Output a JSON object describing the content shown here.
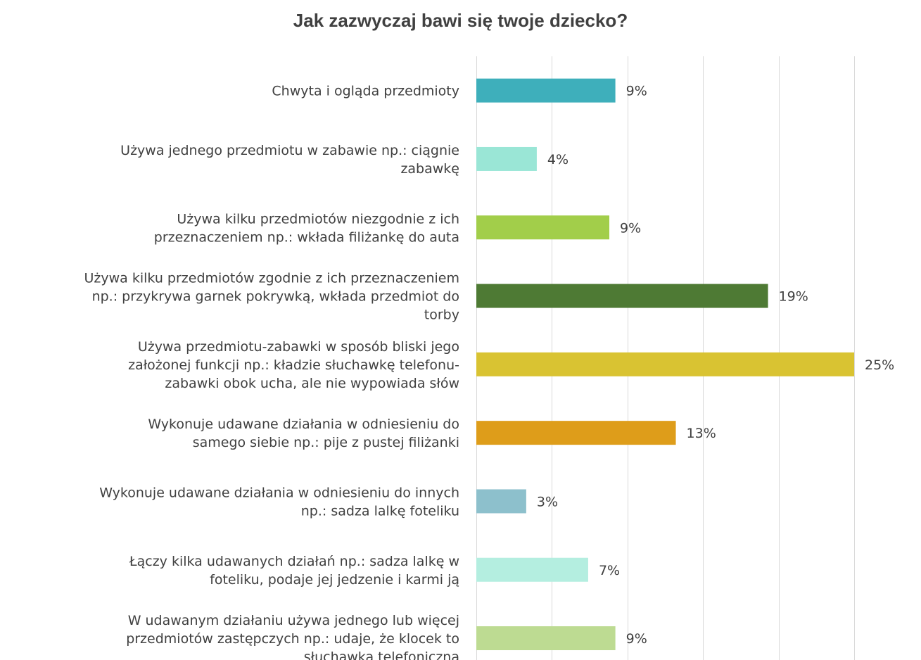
{
  "chart_data": {
    "type": "bar",
    "orientation": "horizontal",
    "title": "Jak zazwyczaj bawi się twoje dziecko?",
    "xlim": [
      0,
      25
    ],
    "grid": true,
    "legend": "none",
    "categories": [
      "Chwyta i ogląda przedmioty",
      "Używa jednego przedmiotu w zabawie np.: ciągnie zabawkę",
      "Używa kilku przedmiotów niezgodnie z ich przeznaczeniem np.: wkłada filiżankę do auta",
      "Używa kilku przedmiotów zgodnie z ich przeznaczeniem np.: przykrywa garnek pokrywką, wkłada przedmiot do torby",
      "Używa przedmiotu-zabawki w sposób bliski jego założonej funkcji np.: kładzie słuchawkę telefonu-zabawki obok ucha, ale nie wypowiada słów",
      "Wykonuje udawane działania w odniesieniu do samego siebie np.: pije z pustej filiżanki",
      "Wykonuje udawane działania w odniesieniu do innych np.: sadza lalkę foteliku",
      "Łączy kilka udawanych działań np.: sadza lalkę w foteliku, podaje jej jedzenie i karmi ją",
      "W udawanym działaniu używa jednego lub więcej przedmiotów zastępczych np.: udaje, że klocek to słuchawka telefoniczna"
    ],
    "category_lines": [
      [
        "Chwyta i ogląda przedmioty"
      ],
      [
        "Używa jednego przedmiotu w zabawie np.: ciągnie",
        "zabawkę"
      ],
      [
        "Używa kilku przedmiotów niezgodnie z ich",
        "przeznaczeniem np.: wkłada filiżankę do auta"
      ],
      [
        "Używa kilku przedmiotów zgodnie z ich przeznaczeniem",
        "np.: przykrywa garnek pokrywką, wkłada przedmiot do",
        "torby"
      ],
      [
        "Używa przedmiotu-zabawki w sposób bliski jego",
        "założonej funkcji np.: kładzie słuchawkę telefonu-",
        "zabawki obok ucha, ale nie wypowiada słów"
      ],
      [
        "Wykonuje udawane działania w odniesieniu do",
        "samego siebie np.: pije z pustej filiżanki"
      ],
      [
        "Wykonuje udawane działania w odniesieniu do innych",
        "np.: sadza lalkę foteliku"
      ],
      [
        "Łączy kilka udawanych działań np.: sadza lalkę w",
        "foteliku, podaje jej jedzenie i karmi ją"
      ],
      [
        "W udawanym działaniu używa jednego lub więcej",
        "przedmiotów zastępczych np.: udaje, że klocek to",
        "słuchawka telefoniczna"
      ]
    ],
    "values": [
      9.2,
      4,
      8.8,
      19.3,
      25,
      13.2,
      3.3,
      7.4,
      9.2
    ],
    "value_labels": [
      "9%",
      "4%",
      "9%",
      "19%",
      "25%",
      "13%",
      "3%",
      "7%",
      "9%"
    ],
    "colors": [
      "#3EAFBB",
      "#9AE6D6",
      "#A2CE4A",
      "#4E7A34",
      "#D9C332",
      "#DE9D1A",
      "#8DC0CC",
      "#B4EEE0",
      "#BDDB92"
    ]
  }
}
